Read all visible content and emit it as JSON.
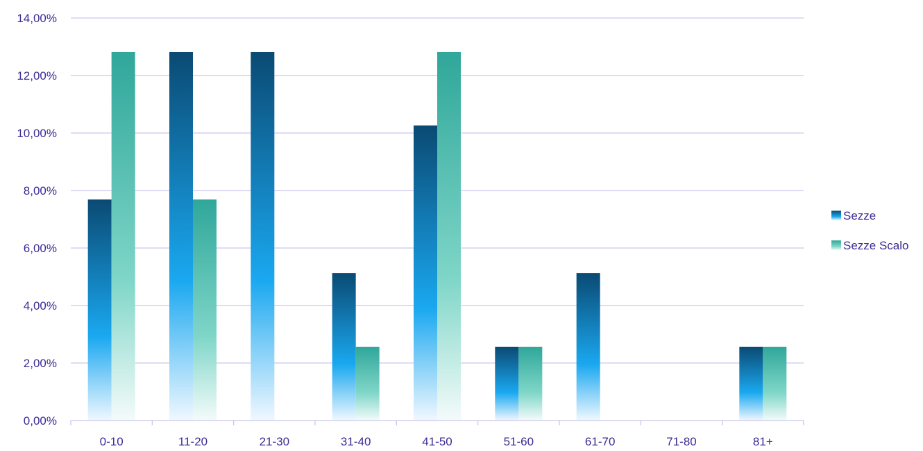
{
  "chart_data": {
    "type": "bar",
    "categories": [
      "0-10",
      "11-20",
      "21-30",
      "31-40",
      "41-50",
      "51-60",
      "61-70",
      "71-80",
      "81+"
    ],
    "series": [
      {
        "name": "Sezze",
        "values": [
          7.69,
          12.82,
          12.82,
          5.13,
          10.26,
          2.56,
          5.13,
          0,
          2.56
        ],
        "color_top": "#0a4a73",
        "color_mid": "#1aa8f0",
        "color_bottom": "#f0f8ff"
      },
      {
        "name": "Sezze Scalo",
        "values": [
          12.82,
          7.69,
          0,
          2.56,
          12.82,
          2.56,
          0,
          0,
          2.56
        ],
        "color_top": "#2fa79a",
        "color_mid": "#7fd6c8",
        "color_bottom": "#f4fbfa"
      }
    ],
    "ylim": [
      0,
      14
    ],
    "yticks": [
      0,
      2,
      4,
      6,
      8,
      10,
      12,
      14
    ],
    "ytick_labels": [
      "0,00%",
      "2,00%",
      "4,00%",
      "6,00%",
      "8,00%",
      "10,00%",
      "12,00%",
      "14,00%"
    ],
    "grid": true,
    "legend_position": "right",
    "gridline_color": "#c9c6ea",
    "axis_text_color": "#3a2c93"
  }
}
